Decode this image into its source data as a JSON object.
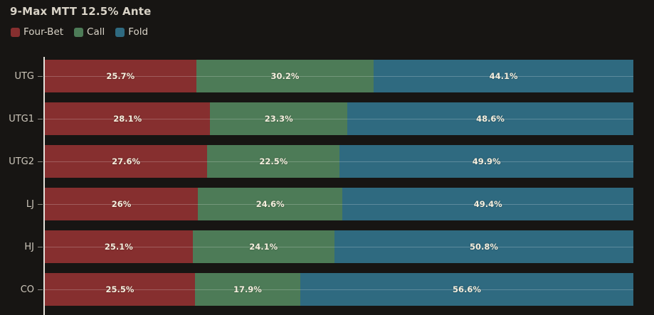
{
  "title": "9-Max MTT 12.5% Ante",
  "colors": {
    "background": "#171513",
    "four_bet": "#862f2f",
    "call": "#4d7b57",
    "fold": "#2f6a80",
    "axis_line": "#e4e1da",
    "title_text": "#d9d3c7",
    "category_text": "#ccc6ba",
    "bar_label_text": "#f4eedd"
  },
  "chart_data": {
    "type": "bar",
    "orientation": "horizontal",
    "stacked": true,
    "title": "9-Max MTT 12.5% Ante",
    "xlabel": "",
    "ylabel": "",
    "xlim": [
      0,
      100
    ],
    "grid": false,
    "legend_position": "top-left",
    "categories": [
      "UTG",
      "UTG1",
      "UTG2",
      "LJ",
      "HJ",
      "CO"
    ],
    "series": [
      {
        "name": "Four-Bet",
        "color": "#862f2f",
        "values": [
          25.7,
          28.1,
          27.6,
          26,
          25.1,
          25.5
        ],
        "labels": [
          "25.7%",
          "28.1%",
          "27.6%",
          "26%",
          "25.1%",
          "25.5%"
        ]
      },
      {
        "name": "Call",
        "color": "#4d7b57",
        "values": [
          30.2,
          23.3,
          22.5,
          24.6,
          24.1,
          17.9
        ],
        "labels": [
          "30.2%",
          "23.3%",
          "22.5%",
          "24.6%",
          "24.1%",
          "17.9%"
        ]
      },
      {
        "name": "Fold",
        "color": "#2f6a80",
        "values": [
          44.1,
          48.6,
          49.9,
          49.4,
          50.8,
          56.6
        ],
        "labels": [
          "44.1%",
          "48.6%",
          "49.9%",
          "49.4%",
          "50.8%",
          "56.6%"
        ]
      }
    ]
  }
}
